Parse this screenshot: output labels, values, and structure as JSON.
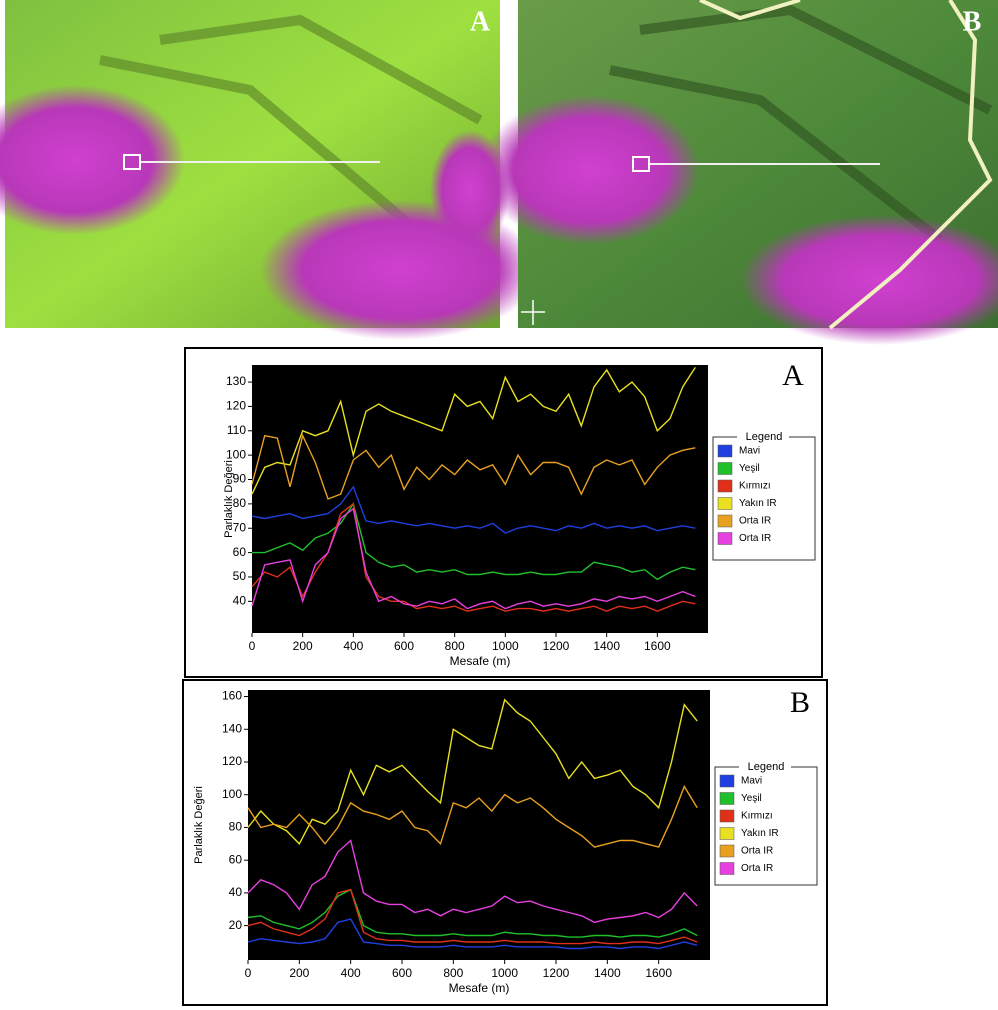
{
  "images": [
    {
      "label": "A"
    },
    {
      "label": "B"
    }
  ],
  "chart_data": [
    {
      "type": "line",
      "title": "A",
      "x_label": "Mesafe (m)",
      "y_label": "Parlaklık Değeri",
      "legend_title": "Legend",
      "legend": "right",
      "x": [
        0,
        50,
        100,
        150,
        200,
        250,
        300,
        350,
        400,
        450,
        500,
        550,
        600,
        650,
        700,
        750,
        800,
        850,
        900,
        950,
        1000,
        1050,
        1100,
        1150,
        1200,
        1250,
        1300,
        1350,
        1400,
        1450,
        1500,
        1550,
        1600,
        1650,
        1700,
        1750
      ],
      "xlim": [
        0,
        1800
      ],
      "xticks": [
        0,
        200,
        400,
        600,
        800,
        1000,
        1200,
        1400,
        1600
      ],
      "ylim": [
        27,
        137
      ],
      "yticks": [
        40,
        50,
        60,
        70,
        80,
        90,
        100,
        110,
        120,
        130
      ],
      "series": [
        {
          "name": "Mavi",
          "color": "#1f3fe0",
          "values": [
            75,
            74,
            75,
            76,
            74,
            75,
            76,
            80,
            87,
            73,
            72,
            73,
            72,
            71,
            72,
            71,
            70,
            71,
            70,
            72,
            68,
            70,
            71,
            70,
            69,
            71,
            70,
            72,
            70,
            71,
            70,
            71,
            69,
            70,
            71,
            70
          ]
        },
        {
          "name": "Yeşil",
          "color": "#1fc02a",
          "values": [
            60,
            60,
            62,
            64,
            61,
            66,
            68,
            72,
            80,
            60,
            56,
            54,
            55,
            52,
            53,
            52,
            53,
            51,
            51,
            52,
            51,
            51,
            52,
            51,
            51,
            52,
            52,
            56,
            55,
            54,
            52,
            53,
            49,
            52,
            54,
            53
          ]
        },
        {
          "name": "Kırmızı",
          "color": "#e0301a",
          "values": [
            46,
            52,
            50,
            54,
            42,
            52,
            60,
            76,
            80,
            50,
            42,
            40,
            40,
            37,
            38,
            37,
            38,
            36,
            37,
            38,
            36,
            37,
            37,
            36,
            37,
            36,
            37,
            38,
            36,
            38,
            37,
            38,
            36,
            38,
            40,
            39
          ]
        },
        {
          "name": "Yakın IR",
          "color": "#e8e020",
          "values": [
            84,
            95,
            97,
            96,
            110,
            108,
            110,
            122,
            100,
            118,
            121,
            118,
            116,
            114,
            112,
            110,
            125,
            120,
            122,
            115,
            132,
            122,
            125,
            120,
            118,
            125,
            112,
            128,
            135,
            126,
            130,
            124,
            110,
            115,
            128,
            136
          ]
        },
        {
          "name": "Orta IR",
          "color": "#e8a020",
          "values": [
            88,
            108,
            107,
            87,
            108,
            97,
            82,
            84,
            98,
            102,
            95,
            100,
            86,
            95,
            90,
            96,
            92,
            98,
            94,
            96,
            88,
            100,
            92,
            97,
            97,
            95,
            84,
            95,
            98,
            96,
            98,
            88,
            95,
            100,
            102,
            103
          ]
        },
        {
          "name": "Orta IR",
          "color": "#e840e0",
          "values": [
            38,
            55,
            56,
            57,
            40,
            55,
            60,
            74,
            78,
            52,
            40,
            42,
            39,
            38,
            40,
            39,
            41,
            37,
            39,
            40,
            37,
            39,
            40,
            38,
            39,
            38,
            39,
            41,
            40,
            42,
            41,
            42,
            40,
            42,
            44,
            42
          ]
        }
      ]
    },
    {
      "type": "line",
      "title": "B",
      "x_label": "Mesafe (m)",
      "y_label": "Parlaklık Değeri",
      "legend_title": "Legend",
      "legend": "right",
      "x": [
        0,
        50,
        100,
        150,
        200,
        250,
        300,
        350,
        400,
        450,
        500,
        550,
        600,
        650,
        700,
        750,
        800,
        850,
        900,
        950,
        1000,
        1050,
        1100,
        1150,
        1200,
        1250,
        1300,
        1350,
        1400,
        1450,
        1500,
        1550,
        1600,
        1650,
        1700,
        1750
      ],
      "xlim": [
        0,
        1800
      ],
      "xticks": [
        0,
        200,
        400,
        600,
        800,
        1000,
        1200,
        1400,
        1600
      ],
      "ylim": [
        -1,
        164
      ],
      "yticks": [
        20,
        40,
        60,
        80,
        100,
        120,
        140,
        160
      ],
      "series": [
        {
          "name": "Mavi",
          "color": "#1f3fe0",
          "values": [
            10,
            12,
            11,
            10,
            9,
            10,
            12,
            22,
            24,
            10,
            9,
            8,
            8,
            7,
            7,
            7,
            8,
            7,
            7,
            7,
            8,
            7,
            7,
            7,
            7,
            6,
            6,
            7,
            7,
            6,
            7,
            7,
            6,
            8,
            10,
            8
          ]
        },
        {
          "name": "Yeşil",
          "color": "#1fc02a",
          "values": [
            25,
            26,
            22,
            20,
            18,
            22,
            28,
            38,
            42,
            20,
            16,
            15,
            15,
            14,
            14,
            14,
            15,
            14,
            14,
            14,
            16,
            15,
            15,
            14,
            14,
            13,
            13,
            14,
            14,
            13,
            14,
            14,
            13,
            15,
            18,
            14
          ]
        },
        {
          "name": "Kırmızı",
          "color": "#e0301a",
          "values": [
            20,
            22,
            18,
            16,
            14,
            18,
            24,
            40,
            42,
            16,
            12,
            11,
            11,
            10,
            10,
            10,
            11,
            10,
            10,
            10,
            11,
            10,
            10,
            10,
            9,
            9,
            9,
            10,
            9,
            9,
            10,
            10,
            9,
            11,
            13,
            10
          ]
        },
        {
          "name": "Yakın IR",
          "color": "#e8e020",
          "values": [
            80,
            90,
            82,
            78,
            70,
            85,
            82,
            90,
            115,
            100,
            118,
            114,
            118,
            110,
            102,
            95,
            140,
            135,
            130,
            128,
            158,
            150,
            145,
            135,
            125,
            110,
            120,
            110,
            112,
            115,
            105,
            100,
            92,
            120,
            155,
            145
          ]
        },
        {
          "name": "Orta IR",
          "color": "#e8a020",
          "values": [
            92,
            80,
            82,
            80,
            88,
            80,
            70,
            80,
            95,
            90,
            88,
            85,
            90,
            80,
            78,
            70,
            95,
            92,
            98,
            90,
            100,
            95,
            98,
            92,
            85,
            80,
            75,
            68,
            70,
            72,
            72,
            70,
            68,
            85,
            105,
            92
          ]
        },
        {
          "name": "Orta IR",
          "color": "#e840e0",
          "values": [
            40,
            48,
            45,
            40,
            30,
            45,
            50,
            65,
            72,
            40,
            35,
            33,
            33,
            28,
            30,
            26,
            30,
            28,
            30,
            32,
            38,
            34,
            35,
            32,
            30,
            28,
            26,
            22,
            24,
            25,
            26,
            28,
            25,
            30,
            40,
            32
          ]
        }
      ]
    }
  ]
}
